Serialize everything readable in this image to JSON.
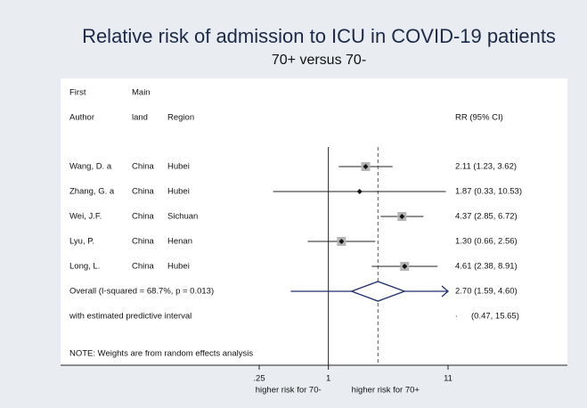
{
  "chart_data": {
    "type": "forest",
    "title": "Relative risk of admission to ICU in COVID-19 patients",
    "subtitle": "70+ versus 70-",
    "headers": {
      "author": [
        "First",
        "Author"
      ],
      "mainland": [
        "Main",
        "land"
      ],
      "region": "Region",
      "ci": "RR (95% CI)"
    },
    "rows": [
      {
        "author": "Wang, D. a",
        "mainland": "China",
        "region": "Hubei",
        "rr": 2.11,
        "lower": 1.23,
        "upper": 3.62,
        "ci_label": "2.11 (1.23, 3.62)"
      },
      {
        "author": "Zhang, G. a",
        "mainland": "China",
        "region": "Hubei",
        "rr": 1.87,
        "lower": 0.33,
        "upper": 10.53,
        "ci_label": "1.87 (0.33, 10.53)"
      },
      {
        "author": "Wei, J.F.",
        "mainland": "China",
        "region": "Sichuan",
        "rr": 4.37,
        "lower": 2.85,
        "upper": 6.72,
        "ci_label": "4.37 (2.85, 6.72)"
      },
      {
        "author": "Lyu, P.",
        "mainland": "China",
        "region": "Henan",
        "rr": 1.3,
        "lower": 0.66,
        "upper": 2.56,
        "ci_label": "1.30 (0.66, 2.56)"
      },
      {
        "author": "Long, L.",
        "mainland": "China",
        "region": "Hubei",
        "rr": 4.61,
        "lower": 2.38,
        "upper": 8.91,
        "ci_label": "4.61 (2.38, 8.91)"
      }
    ],
    "overall": {
      "label": "Overall  (I-squared = 68.7%, p = 0.013)",
      "rr": 2.7,
      "lower": 1.59,
      "upper": 4.6,
      "ci_label": "2.70 (1.59, 4.60)"
    },
    "predictive": {
      "label": "with estimated predictive interval",
      "lower": 0.47,
      "upper": 15.65,
      "estimate_label": ".",
      "ci_label": "(0.47, 15.65)"
    },
    "note": "NOTE: Weights are from random effects analysis",
    "xlim": [
      0.25,
      11
    ],
    "xticks": [
      {
        "value": 0.25,
        "label": ".25"
      },
      1,
      11
    ],
    "log_x": true,
    "reference_line": 1,
    "xlabel_left": "higher risk for 70-",
    "xlabel_right": "higher risk for 70+",
    "color": "#1f2d6e"
  }
}
